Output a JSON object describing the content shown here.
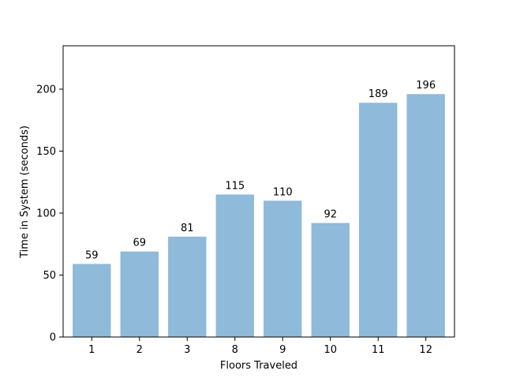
{
  "chart_data": {
    "type": "bar",
    "title": "",
    "xlabel": "Floors Traveled",
    "ylabel": "Time in System (seconds)",
    "categories": [
      "1",
      "2",
      "3",
      "8",
      "9",
      "10",
      "11",
      "12"
    ],
    "values": [
      59,
      69,
      81,
      115,
      110,
      92,
      189,
      196
    ],
    "data_labels": [
      "59",
      "69",
      "81",
      "115",
      "110",
      "92",
      "189",
      "196"
    ],
    "ylim": [
      0,
      235
    ],
    "yticks": [
      0,
      50,
      100,
      150,
      200
    ],
    "grid": false,
    "bar_color": "#8fbad9",
    "legend": "none"
  }
}
